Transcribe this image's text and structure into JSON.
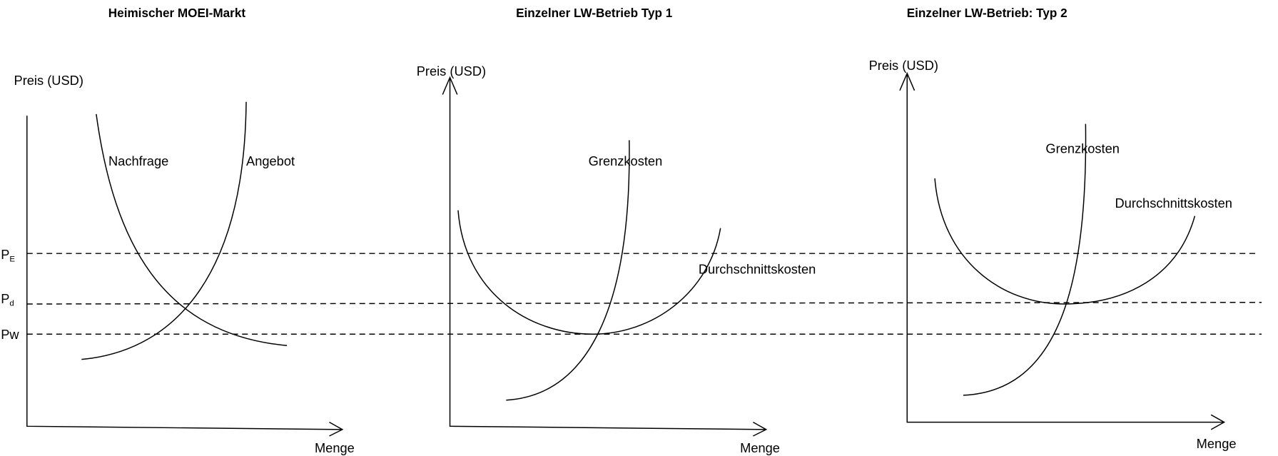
{
  "panels": [
    {
      "title": "Heimischer MOEI-Markt",
      "y_axis": "Preis (USD)",
      "x_axis": "Menge",
      "curves": [
        "Nachfrage",
        "Angebot"
      ],
      "price_labels": [
        {
          "main": "P",
          "sub": "E"
        },
        {
          "main": "P",
          "sub": "d"
        },
        {
          "main": "Pw"
        }
      ]
    },
    {
      "title": "Einzelner LW-Betrieb Typ 1",
      "y_axis": "Preis (USD)",
      "x_axis": "Menge",
      "curves": [
        "Grenzkosten",
        "Durchschnittskosten"
      ]
    },
    {
      "title": "Einzelner LW-Betrieb: Typ 2",
      "y_axis": "Preis (USD)",
      "x_axis": "Menge",
      "curves": [
        "Grenzkosten",
        "Durchschnittskosten"
      ]
    }
  ]
}
